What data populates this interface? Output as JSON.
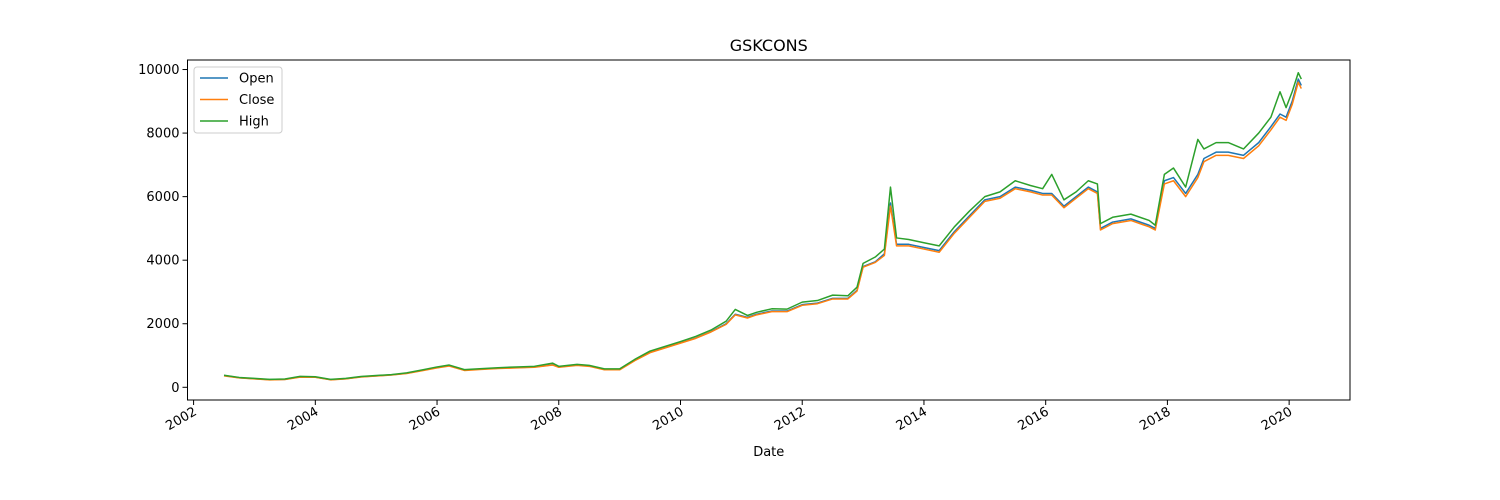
{
  "chart_data": {
    "type": "line",
    "title": "GSKCONS",
    "xlabel": "Date",
    "ylabel": "",
    "xlim": [
      2001.9,
      2021.0
    ],
    "ylim": [
      -400,
      10300
    ],
    "xticks": [
      2002,
      2004,
      2006,
      2008,
      2010,
      2012,
      2014,
      2016,
      2018,
      2020
    ],
    "xtick_labels": [
      "2002",
      "2004",
      "2006",
      "2008",
      "2010",
      "2012",
      "2014",
      "2016",
      "2018",
      "2020"
    ],
    "yticks": [
      0,
      2000,
      4000,
      6000,
      8000,
      10000
    ],
    "ytick_labels": [
      "0",
      "2000",
      "4000",
      "6000",
      "8000",
      "10000"
    ],
    "legend": {
      "position": "top-left"
    },
    "grid": false,
    "x": [
      2002.5,
      2002.75,
      2003.0,
      2003.25,
      2003.5,
      2003.75,
      2004.0,
      2004.25,
      2004.5,
      2004.75,
      2005.0,
      2005.25,
      2005.5,
      2005.75,
      2006.0,
      2006.2,
      2006.45,
      2006.7,
      2007.0,
      2007.3,
      2007.6,
      2007.9,
      2008.0,
      2008.3,
      2008.5,
      2008.75,
      2009.0,
      2009.25,
      2009.5,
      2009.75,
      2010.0,
      2010.25,
      2010.5,
      2010.75,
      2010.9,
      2011.1,
      2011.25,
      2011.5,
      2011.75,
      2012.0,
      2012.25,
      2012.5,
      2012.75,
      2012.9,
      2013.0,
      2013.2,
      2013.35,
      2013.45,
      2013.55,
      2013.75,
      2014.0,
      2014.25,
      2014.5,
      2014.75,
      2015.0,
      2015.25,
      2015.5,
      2015.75,
      2015.95,
      2016.1,
      2016.3,
      2016.5,
      2016.7,
      2016.85,
      2016.9,
      2017.1,
      2017.4,
      2017.7,
      2017.8,
      2017.95,
      2018.1,
      2018.3,
      2018.5,
      2018.6,
      2018.8,
      2019.0,
      2019.25,
      2019.5,
      2019.7,
      2019.85,
      2019.95,
      2020.05,
      2020.15,
      2020.2
    ],
    "series": [
      {
        "name": "Open",
        "color": "#1f77b4",
        "values": [
          370,
          300,
          270,
          240,
          250,
          330,
          320,
          240,
          270,
          330,
          360,
          390,
          440,
          530,
          620,
          680,
          540,
          570,
          600,
          620,
          640,
          710,
          640,
          700,
          670,
          560,
          560,
          850,
          1100,
          1250,
          1400,
          1550,
          1750,
          2000,
          2300,
          2200,
          2300,
          2400,
          2400,
          2600,
          2650,
          2800,
          2800,
          3050,
          3800,
          3950,
          4200,
          5800,
          4500,
          4500,
          4400,
          4300,
          4900,
          5400,
          5900,
          6000,
          6300,
          6200,
          6100,
          6100,
          5700,
          6000,
          6300,
          6150,
          5000,
          5200,
          5300,
          5100,
          5000,
          6500,
          6600,
          6100,
          6700,
          7200,
          7400,
          7400,
          7300,
          7700,
          8200,
          8600,
          8500,
          9000,
          9700,
          9500
        ]
      },
      {
        "name": "Close",
        "color": "#ff7f0e",
        "values": [
          360,
          295,
          265,
          235,
          245,
          320,
          315,
          235,
          265,
          325,
          355,
          385,
          435,
          520,
          610,
          670,
          530,
          560,
          590,
          610,
          630,
          700,
          630,
          690,
          660,
          550,
          550,
          840,
          1090,
          1240,
          1390,
          1540,
          1740,
          1980,
          2280,
          2180,
          2280,
          2380,
          2380,
          2580,
          2630,
          2780,
          2780,
          3030,
          3780,
          3930,
          4150,
          5700,
          4450,
          4450,
          4350,
          4250,
          4850,
          5350,
          5850,
          5950,
          6250,
          6150,
          6050,
          6050,
          5650,
          5950,
          6250,
          6100,
          4950,
          5150,
          5250,
          5050,
          4950,
          6400,
          6500,
          6000,
          6600,
          7100,
          7300,
          7300,
          7200,
          7600,
          8100,
          8500,
          8400,
          8900,
          9600,
          9400
        ]
      },
      {
        "name": "High",
        "color": "#2ca02c",
        "values": [
          380,
          310,
          280,
          250,
          260,
          345,
          330,
          250,
          280,
          340,
          370,
          400,
          455,
          545,
          640,
          700,
          555,
          585,
          615,
          640,
          660,
          760,
          660,
          720,
          690,
          580,
          580,
          880,
          1140,
          1290,
          1440,
          1600,
          1800,
          2080,
          2450,
          2260,
          2360,
          2470,
          2460,
          2680,
          2730,
          2900,
          2880,
          3150,
          3900,
          4100,
          4350,
          6300,
          4700,
          4650,
          4550,
          4450,
          5050,
          5550,
          6000,
          6150,
          6500,
          6350,
          6250,
          6700,
          5900,
          6150,
          6500,
          6400,
          5150,
          5350,
          5450,
          5250,
          5100,
          6700,
          6900,
          6300,
          7800,
          7500,
          7700,
          7700,
          7500,
          8000,
          8500,
          9300,
          8800,
          9300,
          9900,
          9700
        ]
      }
    ]
  }
}
